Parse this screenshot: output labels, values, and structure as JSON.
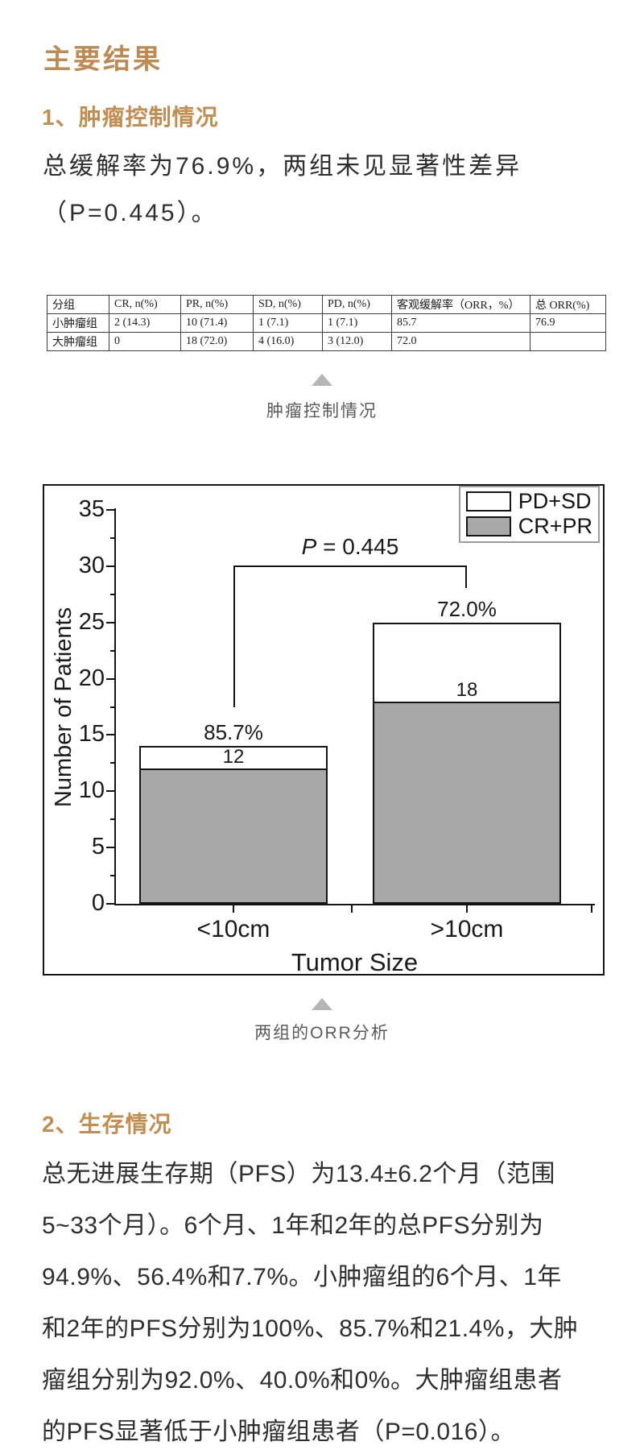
{
  "page_title": "主要结果",
  "section1": {
    "heading": "1、肿瘤控制情况",
    "body_lines": [
      "总缓解率为76.9%，两组未见显著性差异",
      "（P=0.445）。"
    ]
  },
  "table": {
    "headers": [
      "分组",
      "CR, n(%)",
      "PR, n(%)",
      "SD, n(%)",
      "PD, n(%)",
      "客观缓解率（ORR，%）",
      "总 ORR(%)"
    ],
    "rows": [
      [
        "小肿瘤组",
        "2 (14.3)",
        "10 (71.4)",
        "1 (7.1)",
        "1 (7.1)",
        "85.7",
        "76.9"
      ],
      [
        "大肿瘤组",
        "0",
        "18 (72.0)",
        "4 (16.0)",
        "3 (12.0)",
        "72.0",
        ""
      ]
    ],
    "caption": "肿瘤控制情况"
  },
  "chart_data": {
    "type": "bar",
    "stacked": true,
    "categories": [
      "<10cm",
      ">10cm"
    ],
    "series": [
      {
        "name": "CR+PR",
        "values": [
          12,
          18
        ],
        "fill": "#a8a8a8"
      },
      {
        "name": "PD+SD",
        "values": [
          2,
          7
        ],
        "fill": "#ffffff"
      }
    ],
    "stack_totals": [
      14,
      25
    ],
    "segment_count_labels": [
      "12",
      "18"
    ],
    "orr_percent_labels": [
      "85.7%",
      "72.0%"
    ],
    "annotation": "P = 0.445",
    "xlabel": "Tumor Size",
    "ylabel": "Number of Patients",
    "ylim": [
      0,
      35
    ],
    "ytick_major_step": 5,
    "grid": false,
    "legend_position": "top-right",
    "legend": [
      {
        "label": "PD+SD",
        "fill": "#ffffff"
      },
      {
        "label": "CR+PR",
        "fill": "#a8a8a8"
      }
    ],
    "caption": "两组的ORR分析"
  },
  "section2": {
    "heading": "2、生存情况",
    "body_lines": [
      "总无进展生存期（PFS）为13.4±6.2个月（范围",
      "5~33个月）。6个月、1年和2年的总PFS分别为",
      "94.9%、56.4%和7.7%。小肿瘤组的6个月、1年",
      "和2年的PFS分别为100%、85.7%和21.4%，大肿",
      "瘤组分别为92.0%、40.0%和0%。大肿瘤组患者",
      "的PFS显著低于小肿瘤组患者（P=0.016）。"
    ]
  },
  "colors": {
    "accent_gold": "#c28d50",
    "body_text": "#2e2e2e",
    "caption_gray": "#5a5a5a",
    "bar_gray": "#a8a8a8",
    "chart_line": "#141414"
  }
}
